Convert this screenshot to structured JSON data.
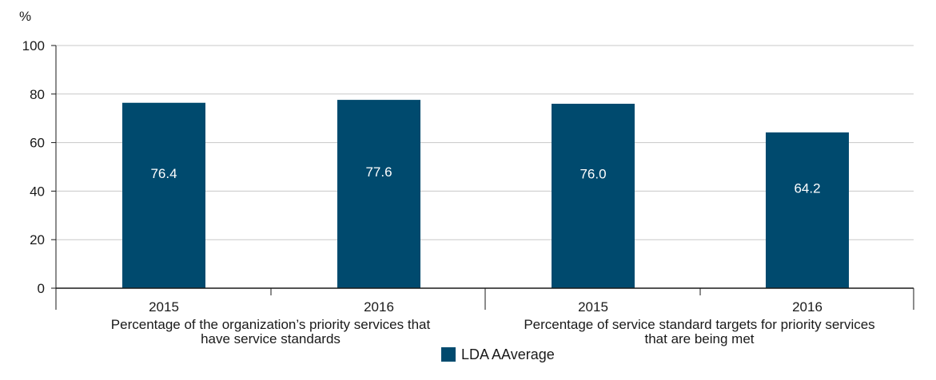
{
  "chart_data": {
    "type": "bar",
    "y_unit_label": "%",
    "ylim": [
      0,
      100
    ],
    "yticks": [
      0,
      20,
      40,
      60,
      80,
      100
    ],
    "grid": true,
    "legend_position": "bottom-center",
    "groups": [
      {
        "label_lines": [
          "Percentage of the organization’s priority services that",
          "have service standards"
        ],
        "categories": [
          "2015",
          "2016"
        ],
        "values": [
          76.4,
          77.6
        ],
        "value_labels": [
          "76.4",
          "77.6"
        ]
      },
      {
        "label_lines": [
          "Percentage of service standard targets for priority services",
          "that are being met"
        ],
        "categories": [
          "2015",
          "2016"
        ],
        "values": [
          76.0,
          64.2
        ],
        "value_labels": [
          "76.0",
          "64.2"
        ]
      }
    ],
    "series": [
      {
        "name": "LDA AAverage",
        "color": "#004a6e"
      }
    ],
    "colors": {
      "bar": "#004a6e",
      "grid": "#c8c8c8",
      "axis": "#1a1a1a"
    }
  }
}
